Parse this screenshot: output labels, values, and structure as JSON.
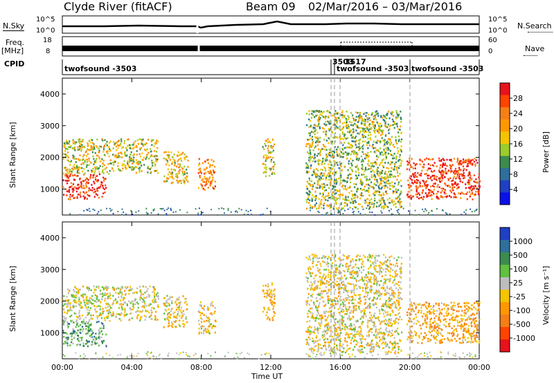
{
  "header": {
    "station": "Clyde River (fitACF)",
    "beam": "Beam 09",
    "date_range": "02/Mar/2016 – 03/Mar/2016"
  },
  "left_labels": {
    "nsky": "N.Sky",
    "nsky_ticks": [
      "10^5",
      "10^0"
    ],
    "freq": "Freq.",
    "freq_unit": "[MHz]",
    "freq_ticks": [
      "18",
      "8"
    ],
    "cpid": "CPID"
  },
  "right_labels": {
    "nsearch": "N.Search",
    "nsearch_ticks": [
      "10^5",
      "10^0"
    ],
    "nave": "Nave",
    "nave_ticks": [
      "60",
      "0"
    ]
  },
  "cpid_segments": [
    {
      "label": "twofsound -3503",
      "start_hour": 0.0
    },
    {
      "label": "3503",
      "start_hour": 15.6
    },
    {
      "label": "3517",
      "start_hour": 16.0
    },
    {
      "label": "twofsound -3503",
      "start_hour": 16.0
    },
    {
      "label": "twofsound -3503",
      "start_hour": 20.0
    }
  ],
  "power_colorbar": {
    "label": "Power [dB]",
    "ticks": [
      "28",
      "24",
      "20",
      "16",
      "12",
      "8",
      "4"
    ],
    "colors": [
      "#e8121b",
      "#ff4400",
      "#f57f17",
      "#ff9800",
      "#f5c400",
      "#9ccc2d",
      "#3c8c50",
      "#2e6f9c",
      "#1f3fc4",
      "#0a10e8"
    ]
  },
  "velocity_colorbar": {
    "label": "Velocity [m s⁻¹]",
    "ticks": [
      "1000",
      "500",
      "100",
      "25",
      "-25",
      "-100",
      "-500",
      "-1000"
    ],
    "colors": [
      "#1f3fc4",
      "#2e6f9c",
      "#3c8c50",
      "#60c040",
      "#bdbdbd",
      "#f5c400",
      "#ff9800",
      "#f57f17",
      "#ff4400",
      "#e8121b"
    ]
  },
  "chart_data": [
    {
      "type": "heatmap",
      "title": "Power",
      "ylabel": "Slant Range [km]",
      "xlabel": "Time UT",
      "x_ticks": [
        "00:00",
        "04:00",
        "08:00",
        "12:00",
        "16:00",
        "20:00",
        "00:00"
      ],
      "y_ticks": [
        "1000",
        "2000",
        "3000",
        "4000"
      ],
      "ylim": [
        180,
        4500
      ],
      "xlim_hours": [
        0,
        24
      ],
      "colorbar_range_db": [
        0,
        30
      ],
      "echo_regions": [
        {
          "t0": 0.0,
          "t1": 2.5,
          "r0": 700,
          "r1": 1500,
          "level_db": 28
        },
        {
          "t0": 0.0,
          "t1": 5.5,
          "r0": 1500,
          "r1": 2600,
          "level_db": 14
        },
        {
          "t0": 5.8,
          "t1": 7.2,
          "r0": 1200,
          "r1": 2200,
          "level_db": 16
        },
        {
          "t0": 7.8,
          "t1": 8.8,
          "r0": 1000,
          "r1": 2000,
          "level_db": 22
        },
        {
          "t0": 11.5,
          "t1": 12.2,
          "r0": 1400,
          "r1": 2600,
          "level_db": 14
        },
        {
          "t0": 14.0,
          "t1": 19.5,
          "r0": 400,
          "r1": 3500,
          "level_db": 12
        },
        {
          "t0": 19.8,
          "t1": 24.0,
          "r0": 700,
          "r1": 2000,
          "level_db": 26
        }
      ]
    },
    {
      "type": "heatmap",
      "title": "Velocity",
      "ylabel": "Slant Range [km]",
      "xlabel": "Time UT",
      "x_ticks": [
        "00:00",
        "04:00",
        "08:00",
        "12:00",
        "16:00",
        "20:00",
        "00:00"
      ],
      "y_ticks": [
        "1000",
        "2000",
        "3000",
        "4000"
      ],
      "ylim": [
        180,
        4500
      ],
      "xlim_hours": [
        0,
        24
      ],
      "colorbar_range_ms": [
        -1000,
        1000
      ],
      "echo_regions": [
        {
          "t0": 0.0,
          "t1": 2.5,
          "r0": 600,
          "r1": 1400,
          "velocity_ms": 300
        },
        {
          "t0": 0.0,
          "t1": 5.5,
          "r0": 1400,
          "r1": 2500,
          "velocity_ms": -60
        },
        {
          "t0": 5.8,
          "t1": 7.2,
          "r0": 1200,
          "r1": 2200,
          "velocity_ms": -150
        },
        {
          "t0": 7.8,
          "t1": 8.8,
          "r0": 1000,
          "r1": 2000,
          "velocity_ms": -200
        },
        {
          "t0": 11.5,
          "t1": 12.2,
          "r0": 1400,
          "r1": 2600,
          "velocity_ms": -300
        },
        {
          "t0": 14.0,
          "t1": 19.5,
          "r0": 400,
          "r1": 3500,
          "velocity_ms": -120
        },
        {
          "t0": 19.8,
          "t1": 24.0,
          "r0": 700,
          "r1": 2000,
          "velocity_ms": -400
        }
      ]
    }
  ]
}
